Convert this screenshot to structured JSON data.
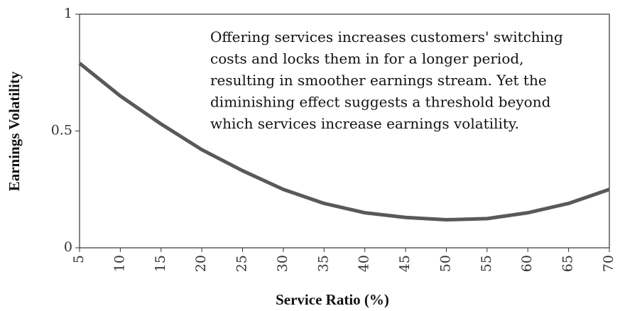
{
  "chart_data": {
    "type": "line",
    "xlabel": "Service Ratio (%)",
    "ylabel": "Earnings Volatility",
    "annotation": [
      "Offering services increases customers' switching",
      "costs and locks them in for a longer period,",
      "resulting in smoother earnings stream. Yet the",
      "diminishing effect suggests a threshold beyond",
      "which services increase earnings volatility."
    ],
    "x": [
      5,
      10,
      15,
      20,
      25,
      30,
      35,
      40,
      45,
      50,
      55,
      60,
      65,
      70
    ],
    "series": [
      {
        "color": "#595959",
        "values": [
          0.79,
          0.65,
          0.53,
          0.42,
          0.33,
          0.25,
          0.19,
          0.15,
          0.13,
          0.12,
          0.125,
          0.15,
          0.19,
          0.25
        ]
      }
    ],
    "xlim": [
      5,
      70
    ],
    "xticks": [
      5,
      10,
      15,
      20,
      25,
      30,
      35,
      40,
      45,
      50,
      55,
      60,
      65,
      70
    ],
    "ylim": [
      0,
      1
    ],
    "yticks": [
      0,
      0.5,
      1
    ],
    "grid": false
  }
}
